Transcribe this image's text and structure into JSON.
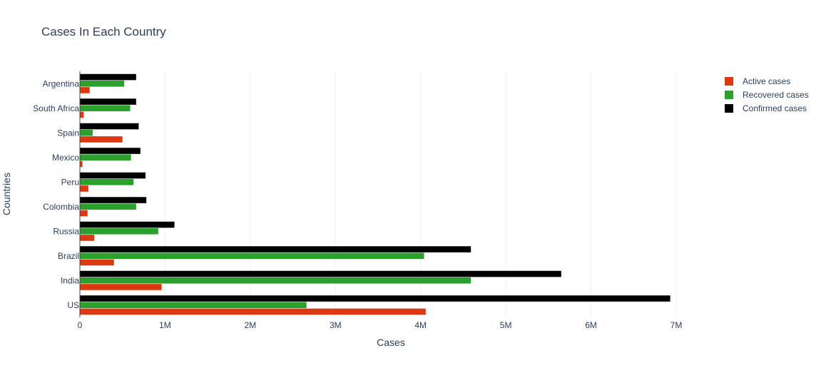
{
  "chart_data": {
    "type": "bar",
    "orientation": "horizontal",
    "barmode": "group",
    "title": "Cases In Each Country",
    "xlabel": "Cases",
    "ylabel": "Countries",
    "xlim": [
      0,
      7200000
    ],
    "x_ticks": [
      0,
      1000000,
      2000000,
      3000000,
      4000000,
      5000000,
      6000000,
      7000000
    ],
    "x_tick_labels": [
      "0",
      "1M",
      "2M",
      "3M",
      "4M",
      "5M",
      "6M",
      "7M"
    ],
    "grid": true,
    "legend_position": "top-right",
    "categories": [
      "US",
      "India",
      "Brazil",
      "Russia",
      "Colombia",
      "Peru",
      "Mexico",
      "Spain",
      "South Africa",
      "Argentina"
    ],
    "series": [
      {
        "name": "Active cases",
        "color": "#dc3912",
        "values": [
          4060000,
          960000,
          400000,
          170000,
          90000,
          100000,
          30000,
          500000,
          45000,
          115000
        ]
      },
      {
        "name": "Recovered cases",
        "color": "#2ca02c",
        "values": [
          2660000,
          4590000,
          4040000,
          920000,
          660000,
          630000,
          600000,
          150000,
          590000,
          520000
        ]
      },
      {
        "name": "Confirmed cases",
        "color": "#000000",
        "values": [
          6930000,
          5650000,
          4590000,
          1110000,
          780000,
          770000,
          710000,
          690000,
          660000,
          660000
        ]
      }
    ]
  }
}
